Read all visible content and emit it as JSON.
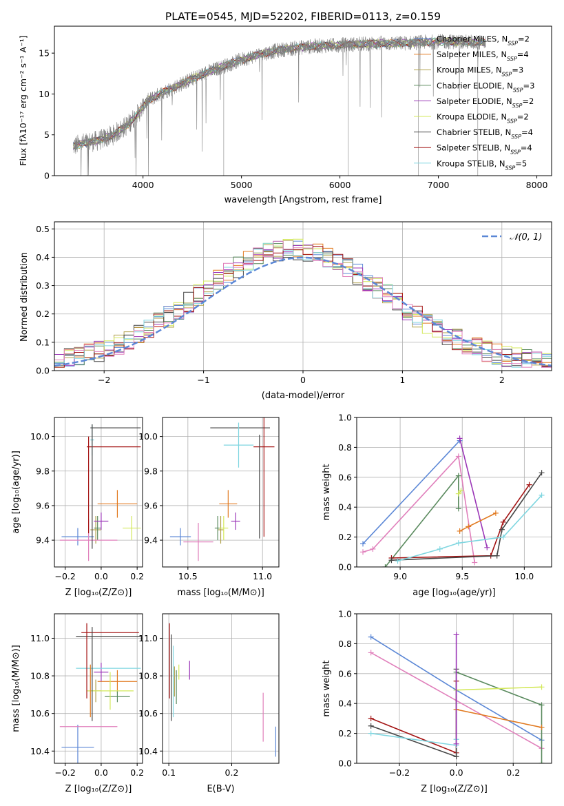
{
  "figure_title": "PLATE=0545, MJD=52202, FIBERID=0113, z=0.159",
  "colors": {
    "c0": "#5b87d6",
    "c1": "#e1791f",
    "c2": "#b0a14a",
    "c3": "#5a8a5e",
    "c4": "#9b36b7",
    "c5": "#d3e85a",
    "c6": "#444444",
    "c7": "#a31313",
    "c8": "#7fd6e0",
    "c9": "#e07fbb",
    "data": "#808080",
    "gauss": "#5b87d6"
  },
  "chart_data": [
    {
      "id": "spectrum",
      "type": "line",
      "title": "PLATE=0545, MJD=52202, FIBERID=0113, z=0.159",
      "xlabel": "wavelength [Angstrom, rest frame]",
      "ylabel": "Flux [fλ10⁻¹⁷ erg cm⁻² s⁻¹ A⁻¹]",
      "xlim": [
        3100,
        8150
      ],
      "ylim": [
        0,
        18.3
      ],
      "xticks": [
        4000,
        5000,
        6000,
        7000,
        8000
      ],
      "yticks": [
        0,
        5,
        10,
        15
      ],
      "continuum": [
        [
          3290,
          3.6
        ],
        [
          3400,
          4.0
        ],
        [
          3550,
          4.3
        ],
        [
          3700,
          5.0
        ],
        [
          3850,
          6.3
        ],
        [
          3950,
          7.6
        ],
        [
          4050,
          9.2
        ],
        [
          4200,
          10.2
        ],
        [
          4400,
          11.3
        ],
        [
          4600,
          12.4
        ],
        [
          4800,
          13.3
        ],
        [
          5000,
          14.2
        ],
        [
          5200,
          14.9
        ],
        [
          5400,
          15.4
        ],
        [
          5600,
          15.7
        ],
        [
          5800,
          15.9
        ],
        [
          6000,
          16.0
        ],
        [
          6200,
          16.1
        ],
        [
          6400,
          16.2
        ],
        [
          6600,
          16.2
        ],
        [
          6800,
          16.3
        ],
        [
          7000,
          16.4
        ],
        [
          7200,
          16.4
        ],
        [
          7480,
          16.3
        ]
      ],
      "legend": [
        {
          "label": "Chabrier MILES, N",
          "sub": "SSP",
          "tail": "=2",
          "color": "c0"
        },
        {
          "label": "Salpeter MILES, N",
          "sub": "SSP",
          "tail": "=4",
          "color": "c1"
        },
        {
          "label": "Kroupa MILES, N",
          "sub": "SSP",
          "tail": "=3",
          "color": "c2"
        },
        {
          "label": "Chabrier ELODIE, N",
          "sub": "SSP",
          "tail": "=3",
          "color": "c3"
        },
        {
          "label": "Salpeter ELODIE, N",
          "sub": "SSP",
          "tail": "=2",
          "color": "c4"
        },
        {
          "label": "Kroupa ELODIE, N",
          "sub": "SSP",
          "tail": "=2",
          "color": "c5"
        },
        {
          "label": "Chabrier STELIB, N",
          "sub": "SSP",
          "tail": "=4",
          "color": "c6"
        },
        {
          "label": "Salpeter STELIB, N",
          "sub": "SSP",
          "tail": "=4",
          "color": "c7"
        },
        {
          "label": "Kroupa STELIB, N",
          "sub": "SSP",
          "tail": "=5",
          "color": "c8"
        }
      ],
      "legend_loc": "top-right"
    },
    {
      "id": "residuals",
      "type": "histogram",
      "xlabel": "(data-model)/error",
      "ylabel": "Normed distribution",
      "xlim": [
        -2.5,
        2.5
      ],
      "ylim": [
        0,
        0.525
      ],
      "xticks": [
        -2,
        -1,
        0,
        1,
        2
      ],
      "yticks": [
        0.0,
        0.1,
        0.2,
        0.3,
        0.4,
        0.5
      ],
      "bin_width": 0.1,
      "legend_label": "𝒩(0, 1)",
      "legend_loc": "top-right"
    },
    {
      "id": "age_vs_Z",
      "type": "errorbar",
      "xlabel": "Z [log₁₀(Z/Z⊙)]",
      "ylabel": "age  [log₁₀(age/yr)]",
      "xlim": [
        -0.26,
        0.23
      ],
      "ylim": [
        9.245,
        10.11
      ],
      "xticks": [
        -0.2,
        0.0,
        0.2
      ],
      "yticks": [
        9.4,
        9.6,
        9.8,
        10.0
      ],
      "points": [
        {
          "color": "c0",
          "x": -0.13,
          "y": 9.42,
          "xerr": 0.09,
          "yerr": 0.05
        },
        {
          "color": "c1",
          "x": 0.09,
          "y": 9.61,
          "xerr": 0.11,
          "yerr": 0.08
        },
        {
          "color": "c2",
          "x": -0.03,
          "y": 9.46,
          "xerr": 0.03,
          "yerr": 0.08
        },
        {
          "color": "c3",
          "x": -0.02,
          "y": 9.47,
          "xerr": 0.02,
          "yerr": 0.07
        },
        {
          "color": "c4",
          "x": 0.0,
          "y": 9.51,
          "xerr": 0.04,
          "yerr": 0.05
        },
        {
          "color": "c5",
          "x": 0.17,
          "y": 9.47,
          "xerr": 0.05,
          "yerr": 0.07
        },
        {
          "color": "c6",
          "x": 0.08,
          "y": 10.05,
          "xerr": 0.14,
          "yerr": 0.0
        },
        {
          "color": "c7",
          "x": 0.07,
          "y": 9.94,
          "xerr": 0.15,
          "yerr": 0.0
        },
        {
          "color": "c8",
          "x": -0.05,
          "y": 9.98,
          "xerr": 0.01,
          "yerr": 0.09
        },
        {
          "color": "c9",
          "x": -0.07,
          "y": 9.4,
          "xerr": 0.16,
          "yerr": 0.12
        },
        {
          "color": "c7",
          "x": -0.07,
          "y": 9.72,
          "xerr": 0.0,
          "yerr": 0.28
        },
        {
          "color": "c6",
          "x": -0.05,
          "y": 9.71,
          "xerr": 0.0,
          "yerr": 0.36
        }
      ]
    },
    {
      "id": "age_vs_mass",
      "type": "errorbar",
      "xlabel": "mass [log₁₀(M/M⊙)]",
      "ylabel": "",
      "xlim": [
        10.33,
        11.11
      ],
      "ylim": [
        9.245,
        10.11
      ],
      "xticks": [
        10.5,
        11.0
      ],
      "yticks": [
        9.4,
        9.6,
        9.8,
        10.0
      ],
      "points": [
        {
          "color": "c0",
          "x": 10.45,
          "y": 9.42,
          "xerr": 0.07,
          "yerr": 0.05
        },
        {
          "color": "c9",
          "x": 10.57,
          "y": 9.39,
          "xerr": 0.1,
          "yerr": 0.11
        },
        {
          "color": "c1",
          "x": 10.77,
          "y": 9.61,
          "xerr": 0.06,
          "yerr": 0.08
        },
        {
          "color": "c2",
          "x": 10.72,
          "y": 9.46,
          "xerr": 0.02,
          "yerr": 0.08
        },
        {
          "color": "c3",
          "x": 10.7,
          "y": 9.47,
          "xerr": 0.02,
          "yerr": 0.07
        },
        {
          "color": "c4",
          "x": 10.82,
          "y": 9.51,
          "xerr": 0.03,
          "yerr": 0.05
        },
        {
          "color": "c5",
          "x": 10.74,
          "y": 9.47,
          "xerr": 0.03,
          "yerr": 0.07
        },
        {
          "color": "c6",
          "x": 10.85,
          "y": 10.05,
          "xerr": 0.2,
          "yerr": 0.0
        },
        {
          "color": "c7",
          "x": 11.01,
          "y": 9.94,
          "xerr": 0.07,
          "yerr": 0.52
        },
        {
          "color": "c8",
          "x": 10.84,
          "y": 9.95,
          "xerr": 0.1,
          "yerr": 0.13
        },
        {
          "color": "c6",
          "x": 10.98,
          "y": 9.71,
          "xerr": 0.0,
          "yerr": 0.3
        }
      ]
    },
    {
      "id": "weight_vs_age",
      "type": "line",
      "xlabel": "age  [log₁₀(age/yr)]",
      "ylabel": "mass weight",
      "xlim": [
        8.65,
        10.22
      ],
      "ylim": [
        0,
        1.0
      ],
      "xticks": [
        9.0,
        9.5,
        10.0
      ],
      "yticks": [
        0.0,
        0.2,
        0.4,
        0.6,
        0.8,
        1.0
      ],
      "series": [
        {
          "color": "c0",
          "x": [
            8.7,
            9.48
          ],
          "y": [
            0.155,
            0.845
          ]
        },
        {
          "color": "c9",
          "x": [
            8.7,
            8.78,
            9.47,
            9.6
          ],
          "y": [
            0.1,
            0.12,
            0.74,
            0.03
          ]
        },
        {
          "color": "c3",
          "x": [
            8.88,
            9.47,
            9.47
          ],
          "y": [
            0.0,
            0.61,
            0.39
          ]
        },
        {
          "color": "c4",
          "x": [
            9.48,
            9.7
          ],
          "y": [
            0.86,
            0.13
          ]
        },
        {
          "color": "c1",
          "x": [
            9.48,
            9.55,
            9.77
          ],
          "y": [
            0.24,
            0.27,
            0.36
          ]
        },
        {
          "color": "c5",
          "x": [
            9.47,
            9.49
          ],
          "y": [
            0.49,
            0.51
          ]
        },
        {
          "color": "c7",
          "x": [
            8.93,
            9.73,
            9.83,
            10.04
          ],
          "y": [
            0.06,
            0.075,
            0.3,
            0.55
          ]
        },
        {
          "color": "c6",
          "x": [
            8.93,
            9.78,
            9.82,
            10.14
          ],
          "y": [
            0.045,
            0.075,
            0.25,
            0.63
          ]
        },
        {
          "color": "c8",
          "x": [
            8.98,
            9.32,
            9.47,
            9.83,
            10.14
          ],
          "y": [
            0.04,
            0.12,
            0.16,
            0.2,
            0.48
          ]
        }
      ]
    },
    {
      "id": "mass_vs_Z",
      "type": "errorbar",
      "xlabel": "Z [log₁₀(Z/Z⊙)]",
      "ylabel": "mass [log₁₀(M/M⊙)]",
      "xlim": [
        -0.26,
        0.23
      ],
      "ylim": [
        10.335,
        11.13
      ],
      "xticks": [
        -0.2,
        0.0,
        0.2
      ],
      "yticks": [
        10.4,
        10.6,
        10.8,
        11.0
      ],
      "points": [
        {
          "color": "c0",
          "x": -0.13,
          "y": 10.42,
          "xerr": 0.09,
          "yerr": 0.12
        },
        {
          "color": "c9",
          "x": -0.07,
          "y": 10.53,
          "xerr": 0.16,
          "yerr": 0.0
        },
        {
          "color": "c1",
          "x": 0.09,
          "y": 10.77,
          "xerr": 0.11,
          "yerr": 0.06
        },
        {
          "color": "c2",
          "x": -0.03,
          "y": 10.72,
          "xerr": 0.03,
          "yerr": 0.06
        },
        {
          "color": "c3",
          "x": 0.09,
          "y": 10.69,
          "xerr": 0.07,
          "yerr": 0.03
        },
        {
          "color": "c4",
          "x": 0.0,
          "y": 10.82,
          "xerr": 0.04,
          "yerr": 0.05
        },
        {
          "color": "c5",
          "x": 0.05,
          "y": 10.72,
          "xerr": 0.13,
          "yerr": 0.1
        },
        {
          "color": "c6",
          "x": 0.04,
          "y": 11.01,
          "xerr": 0.18,
          "yerr": 0.0
        },
        {
          "color": "c7",
          "x": 0.05,
          "y": 11.03,
          "xerr": 0.16,
          "yerr": 0.0
        },
        {
          "color": "c8",
          "x": 0.04,
          "y": 10.84,
          "xerr": 0.18,
          "yerr": 0.0
        },
        {
          "color": "c7",
          "x": -0.08,
          "y": 10.88,
          "xerr": 0.0,
          "yerr": 0.2
        },
        {
          "color": "c6",
          "x": -0.05,
          "y": 10.81,
          "xerr": 0.0,
          "yerr": 0.25
        },
        {
          "color": "c1",
          "x": -0.06,
          "y": 10.72,
          "xerr": 0.0,
          "yerr": 0.14
        }
      ]
    },
    {
      "id": "mass_vs_ebv",
      "type": "errorbar",
      "xlabel": "E(B-V)",
      "ylabel": "",
      "xlim": [
        0.09,
        0.275
      ],
      "ylim": [
        10.335,
        11.13
      ],
      "xticks": [
        0.1,
        0.2
      ],
      "yticks": [
        10.4,
        10.6,
        10.8,
        11.0
      ],
      "points": [
        {
          "color": "c7",
          "x": 0.101,
          "y": 10.88,
          "yerr": 0.2
        },
        {
          "color": "c6",
          "x": 0.104,
          "y": 10.79,
          "yerr": 0.23
        },
        {
          "color": "c8",
          "x": 0.107,
          "y": 10.77,
          "yerr": 0.19
        },
        {
          "color": "c2",
          "x": 0.109,
          "y": 10.77,
          "yerr": 0.08
        },
        {
          "color": "c3",
          "x": 0.112,
          "y": 10.74,
          "yerr": 0.09
        },
        {
          "color": "c5",
          "x": 0.116,
          "y": 10.82,
          "yerr": 0.04
        },
        {
          "color": "c4",
          "x": 0.133,
          "y": 10.83,
          "yerr": 0.05
        },
        {
          "color": "c9",
          "x": 0.25,
          "y": 10.58,
          "yerr": 0.13
        },
        {
          "color": "c0",
          "x": 0.27,
          "y": 10.45,
          "yerr": 0.08
        }
      ]
    },
    {
      "id": "weight_vs_Z",
      "type": "line",
      "xlabel": "Z [log₁₀(Z/Z⊙)]",
      "ylabel": "mass weight",
      "xlim": [
        -0.35,
        0.335
      ],
      "ylim": [
        0,
        1.0
      ],
      "xticks": [
        -0.2,
        0.0,
        0.2
      ],
      "yticks": [
        0.0,
        0.2,
        0.4,
        0.6,
        0.8,
        1.0
      ],
      "series": [
        {
          "color": "c0",
          "x": [
            -0.3,
            0.0,
            0.3
          ],
          "y": [
            0.845,
            0.49,
            0.155
          ]
        },
        {
          "color": "c9",
          "x": [
            -0.3,
            0.3
          ],
          "y": [
            0.74,
            0.1
          ]
        },
        {
          "color": "c7",
          "x": [
            -0.3,
            0.0,
            0.0
          ],
          "y": [
            0.3,
            0.07,
            0.55
          ]
        },
        {
          "color": "c6",
          "x": [
            -0.3,
            0.0,
            0.0
          ],
          "y": [
            0.25,
            0.045,
            0.63
          ]
        },
        {
          "color": "c8",
          "x": [
            -0.3,
            0.0,
            0.0
          ],
          "y": [
            0.2,
            0.12,
            0.16
          ]
        },
        {
          "color": "c3",
          "x": [
            0.0,
            0.3,
            0.3
          ],
          "y": [
            0.61,
            0.39,
            0.0
          ]
        },
        {
          "color": "c5",
          "x": [
            0.0,
            0.3
          ],
          "y": [
            0.49,
            0.51
          ]
        },
        {
          "color": "c1",
          "x": [
            0.0,
            0.3
          ],
          "y": [
            0.36,
            0.24
          ]
        },
        {
          "color": "c4",
          "x": [
            0.0,
            0.0
          ],
          "y": [
            0.86,
            0.13
          ]
        }
      ]
    }
  ]
}
